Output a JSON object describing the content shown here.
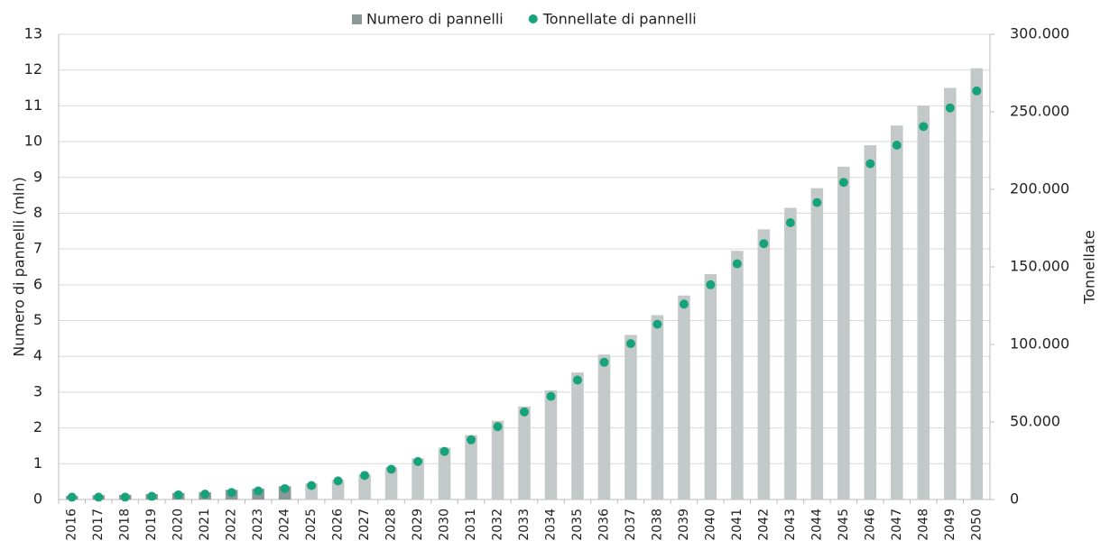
{
  "chart_data": {
    "type": "bar",
    "y_label": "Numero di pannelli (mln)",
    "y2_label": "Tonnellate",
    "categories": [
      "2016",
      "2017",
      "2018",
      "2019",
      "2020",
      "2021",
      "2022",
      "2023",
      "2024",
      "2025",
      "2026",
      "2027",
      "2028",
      "2029",
      "2030",
      "2031",
      "2032",
      "2033",
      "2034",
      "2035",
      "2036",
      "2037",
      "2038",
      "2039",
      "2040",
      "2041",
      "2042",
      "2043",
      "2044",
      "2045",
      "2046",
      "2047",
      "2048",
      "2049",
      "2050"
    ],
    "series": [
      {
        "name": "Numero di pannelli",
        "type": "bar",
        "color": "#8c9998",
        "colors": [
          "#8c9998",
          "#8c9998",
          "#8c9998",
          "#8c9998",
          "#8c9998",
          "#8c9998",
          "#8c9998",
          "#8c9998",
          "#8c9998",
          "#c3c9c8",
          "#c3c9c8",
          "#c3c9c8",
          "#c3c9c8",
          "#c3c9c8",
          "#c3c9c8",
          "#c3c9c8",
          "#c3c9c8",
          "#c3c9c8",
          "#c3c9c8",
          "#c3c9c8",
          "#c3c9c8",
          "#c3c9c8",
          "#c3c9c8",
          "#c3c9c8",
          "#c3c9c8",
          "#c3c9c8",
          "#c3c9c8",
          "#c3c9c8",
          "#c3c9c8",
          "#c3c9c8",
          "#c3c9c8",
          "#c3c9c8",
          "#c3c9c8",
          "#c3c9c8",
          "#c3c9c8"
        ],
        "values": [
          0.1,
          0.12,
          0.13,
          0.15,
          0.18,
          0.2,
          0.27,
          0.3,
          0.37,
          0.45,
          0.55,
          0.7,
          0.9,
          1.15,
          1.45,
          1.8,
          2.2,
          2.6,
          3.05,
          3.55,
          4.05,
          4.6,
          5.15,
          5.7,
          6.3,
          6.95,
          7.55,
          8.15,
          8.7,
          9.3,
          9.9,
          10.45,
          11.0,
          11.5,
          12.05
        ]
      },
      {
        "name": "Tonnellate di pannelli",
        "type": "scatter",
        "axis": "y2",
        "color": "#16a37c",
        "values": [
          1500,
          1500,
          1500,
          2000,
          3000,
          3500,
          4500,
          5500,
          7000,
          9000,
          12000,
          15500,
          19500,
          24500,
          31000,
          38500,
          47000,
          56500,
          66500,
          77000,
          88500,
          100500,
          113000,
          126000,
          138500,
          152000,
          165000,
          178500,
          191500,
          204500,
          216500,
          228500,
          240500,
          252500,
          263500
        ]
      }
    ],
    "ylim": [
      0,
      13
    ],
    "yticks": [
      0,
      1,
      2,
      3,
      4,
      5,
      6,
      7,
      8,
      9,
      10,
      11,
      12,
      13
    ],
    "y2lim": [
      0,
      300000
    ],
    "y2ticks": [
      0,
      {
        "value": 50000,
        "label": "50.000"
      },
      {
        "value": 100000,
        "label": "100.000"
      },
      {
        "value": 150000,
        "label": "150.000"
      },
      {
        "value": 200000,
        "label": "200.000"
      },
      {
        "value": 250000,
        "label": "250.000"
      },
      {
        "value": 300000,
        "label": "300.000"
      }
    ],
    "grid": true,
    "legend": "top"
  }
}
